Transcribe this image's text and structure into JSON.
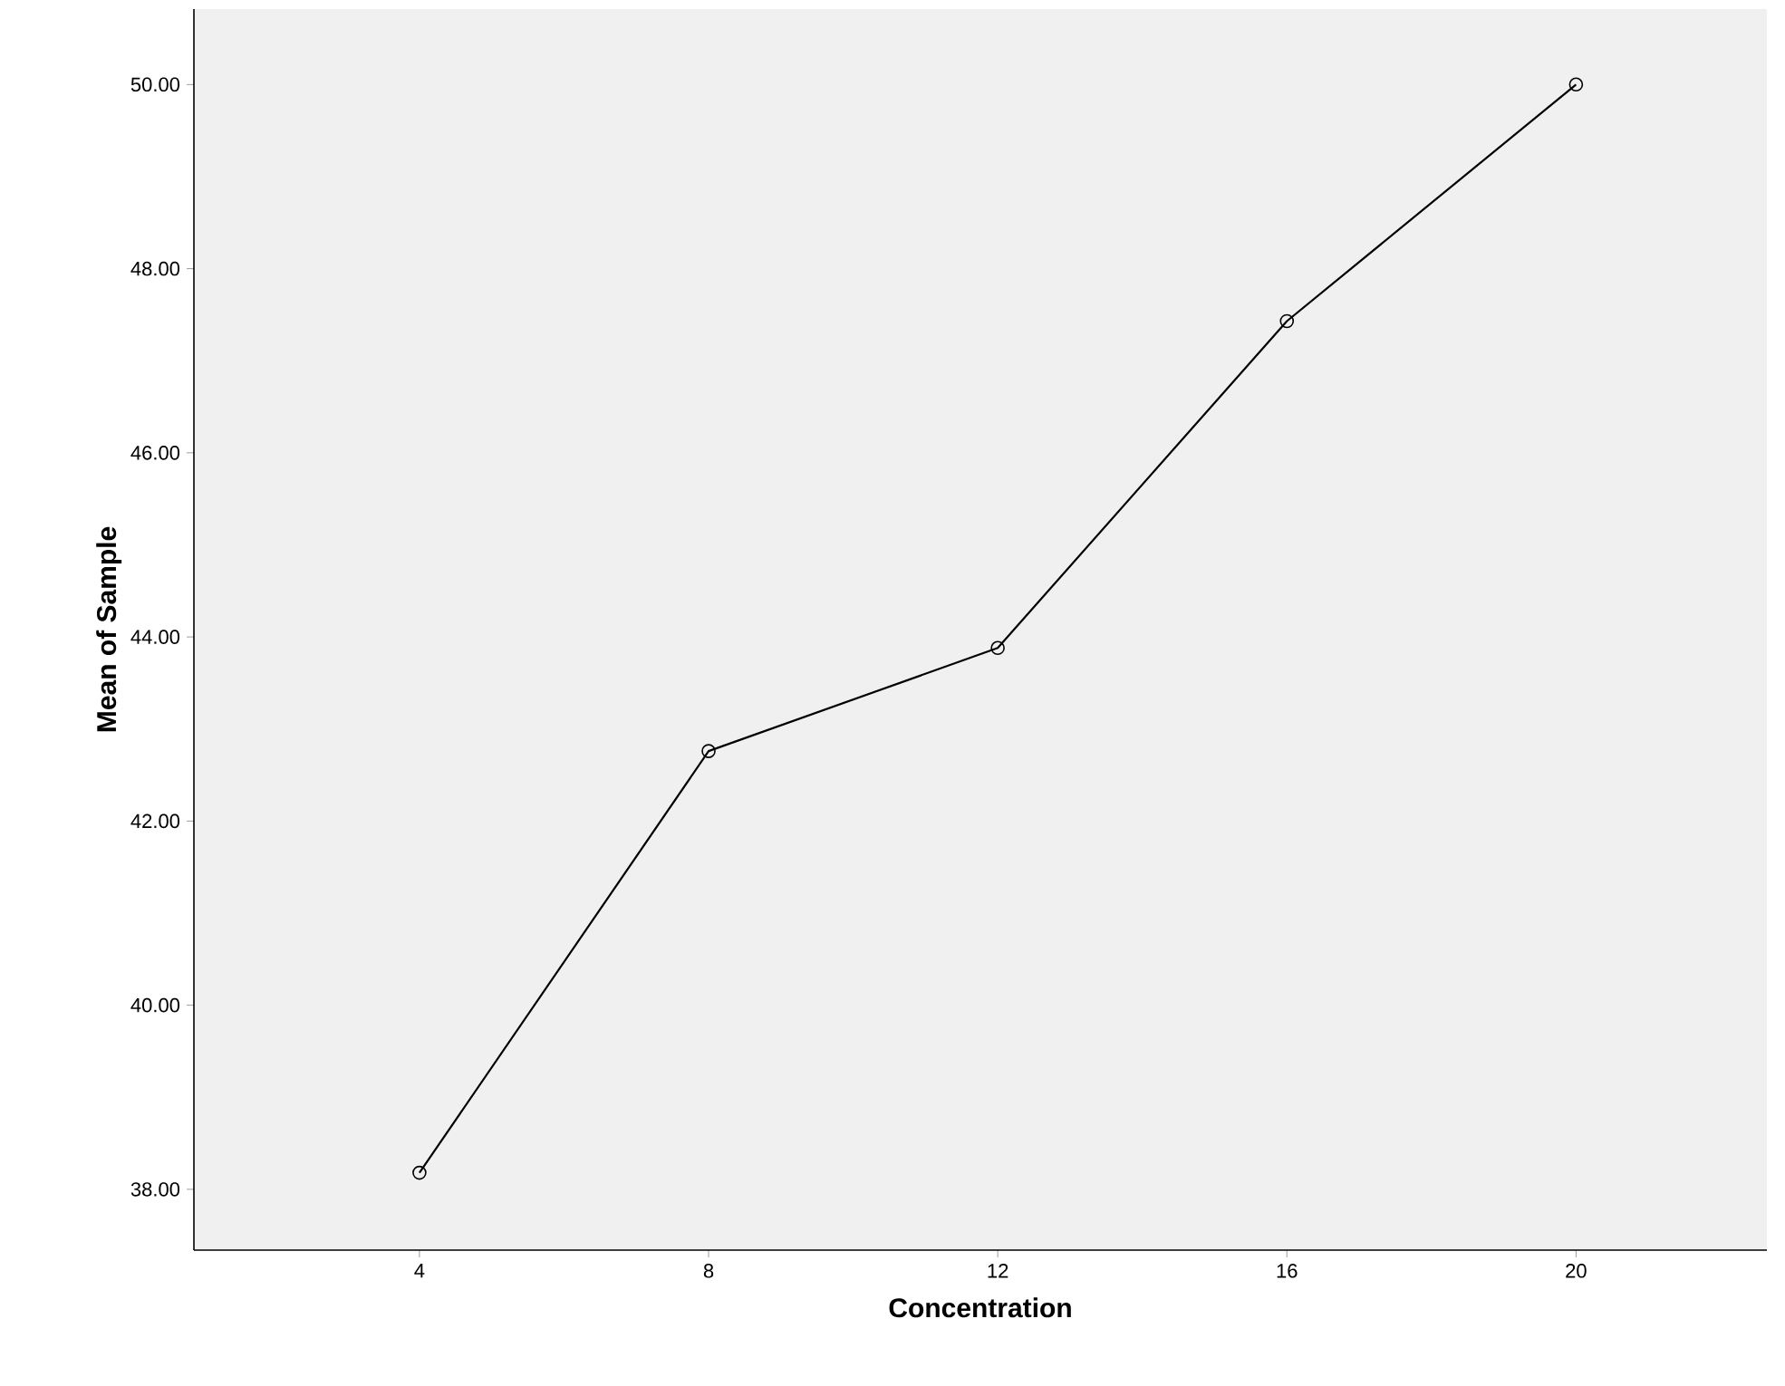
{
  "chart_data": {
    "type": "line",
    "xlabel": "Concentration",
    "ylabel": "Mean of Sample",
    "categories": [
      "4",
      "8",
      "12",
      "16",
      "20"
    ],
    "series": [
      {
        "color": "#000000",
        "values": [
          38.18,
          42.76,
          43.88,
          47.43,
          50.0
        ]
      }
    ],
    "ylim": [
      37.34,
      50.82
    ],
    "yticks": [
      {
        "value": 38,
        "label": "38.00"
      },
      {
        "value": 40,
        "label": "40.00"
      },
      {
        "value": 42,
        "label": "42.00"
      },
      {
        "value": 44,
        "label": "44.00"
      },
      {
        "value": 46,
        "label": "46.00"
      },
      {
        "value": 48,
        "label": "48.00"
      },
      {
        "value": 50,
        "label": "50.00"
      }
    ],
    "grid": false,
    "marker": "circle",
    "line_style": "solid"
  }
}
